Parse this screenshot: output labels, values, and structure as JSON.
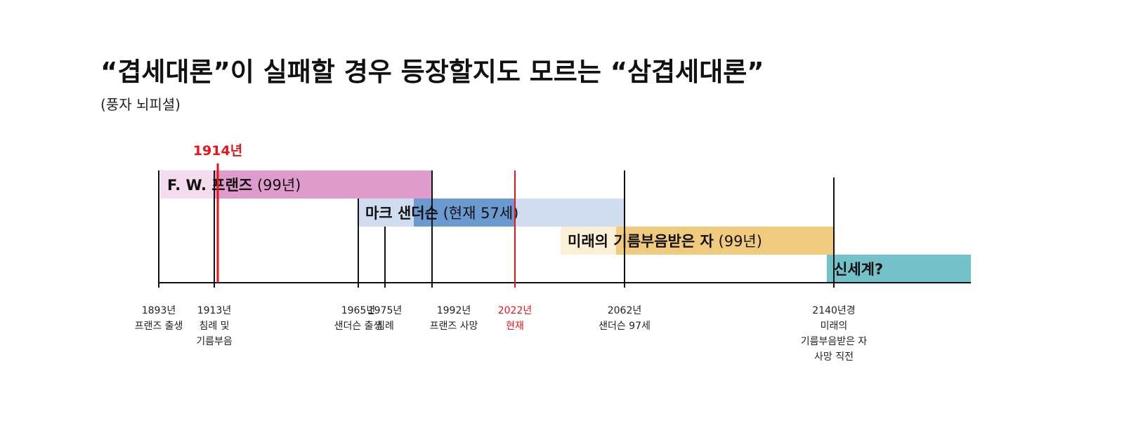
{
  "header": {
    "title": "“겹세대론”이 실패할 경우 등장할지도 모르는 “삼겹세대론”",
    "subtitle": "(풍자 뇌피셜)"
  },
  "marker": {
    "label": "1914년"
  },
  "bars": [
    {
      "bold": "F. W. 프랜즈",
      "normal": "(99년)"
    },
    {
      "bold": "마크 샌더슨",
      "normal": "(현재 57세)"
    },
    {
      "bold": "미래의 기름부음받은 자",
      "normal": "(99년)"
    },
    {
      "bold": "신세계?"
    }
  ],
  "ticks": [
    {
      "lines": [
        "1893년",
        "프랜즈 출생"
      ]
    },
    {
      "lines": [
        "1913년",
        "침례 및",
        "기름부음"
      ]
    },
    {
      "lines": [
        "1965년",
        "샌더슨 출생"
      ]
    },
    {
      "lines": [
        "1975년",
        "침례"
      ]
    },
    {
      "lines": [
        "1992년",
        "프랜즈 사망"
      ]
    },
    {
      "lines": [
        "2022년",
        "현재"
      ]
    },
    {
      "lines": [
        "2062년",
        "샌더슨 97세"
      ]
    },
    {
      "lines": [
        "2140년경",
        "미래의",
        "기름부음받은 자",
        "사망 직전"
      ]
    }
  ]
}
